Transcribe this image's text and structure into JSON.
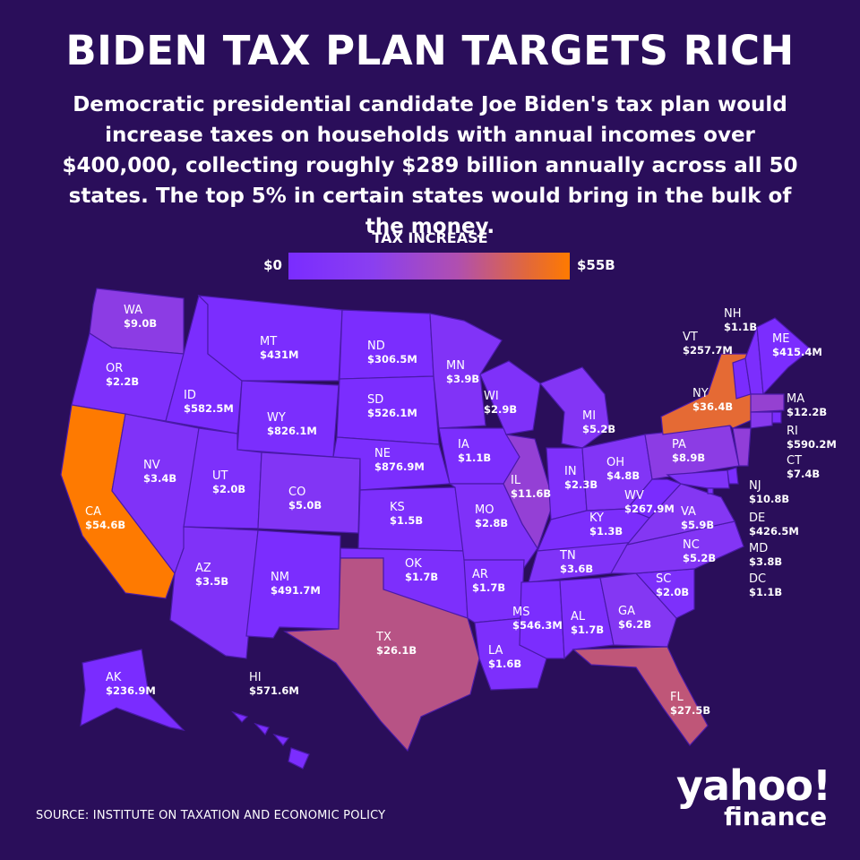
{
  "title": "BIDEN TAX PLAN TARGETS RICH",
  "subtitle": "Democratic presidential candidate Joe Biden's tax plan would increase taxes on households with annual incomes over $400,000, collecting roughly $289 billion annually across all 50 states. The top 5% in certain states would bring in the bulk of the money.",
  "legend": {
    "title": "TAX INCREASE",
    "min_label": "$0",
    "max_label": "$55B",
    "min_color": "#7a2cff",
    "max_color": "#ff7a00"
  },
  "states": [
    {
      "code": "WA",
      "value": "$9.0B"
    },
    {
      "code": "OR",
      "value": "$2.2B"
    },
    {
      "code": "CA",
      "value": "$54.6B"
    },
    {
      "code": "NV",
      "value": "$3.4B"
    },
    {
      "code": "ID",
      "value": "$582.5M"
    },
    {
      "code": "MT",
      "value": "$431M"
    },
    {
      "code": "WY",
      "value": "$826.1M"
    },
    {
      "code": "UT",
      "value": "$2.0B"
    },
    {
      "code": "CO",
      "value": "$5.0B"
    },
    {
      "code": "AZ",
      "value": "$3.5B"
    },
    {
      "code": "NM",
      "value": "$491.7M"
    },
    {
      "code": "ND",
      "value": "$306.5M"
    },
    {
      "code": "SD",
      "value": "$526.1M"
    },
    {
      "code": "NE",
      "value": "$876.9M"
    },
    {
      "code": "KS",
      "value": "$1.5B"
    },
    {
      "code": "OK",
      "value": "$1.7B"
    },
    {
      "code": "TX",
      "value": "$26.1B"
    },
    {
      "code": "MN",
      "value": "$3.9B"
    },
    {
      "code": "IA",
      "value": "$1.1B"
    },
    {
      "code": "MO",
      "value": "$2.8B"
    },
    {
      "code": "AR",
      "value": "$1.7B"
    },
    {
      "code": "LA",
      "value": "$1.6B"
    },
    {
      "code": "WI",
      "value": "$2.9B"
    },
    {
      "code": "IL",
      "value": "$11.6B"
    },
    {
      "code": "MI",
      "value": "$5.2B"
    },
    {
      "code": "IN",
      "value": "$2.3B"
    },
    {
      "code": "OH",
      "value": "$4.8B"
    },
    {
      "code": "KY",
      "value": "$1.3B"
    },
    {
      "code": "TN",
      "value": "$3.6B"
    },
    {
      "code": "MS",
      "value": "$546.3M"
    },
    {
      "code": "AL",
      "value": "$1.7B"
    },
    {
      "code": "GA",
      "value": "$6.2B"
    },
    {
      "code": "FL",
      "value": "$27.5B"
    },
    {
      "code": "SC",
      "value": "$2.0B"
    },
    {
      "code": "NC",
      "value": "$5.2B"
    },
    {
      "code": "VA",
      "value": "$5.9B"
    },
    {
      "code": "WV",
      "value": "$267.9M"
    },
    {
      "code": "PA",
      "value": "$8.9B"
    },
    {
      "code": "NY",
      "value": "$36.4B"
    },
    {
      "code": "VT",
      "value": "$257.7M"
    },
    {
      "code": "NH",
      "value": "$1.1B"
    },
    {
      "code": "ME",
      "value": "$415.4M"
    },
    {
      "code": "MA",
      "value": "$12.2B"
    },
    {
      "code": "RI",
      "value": "$590.2M"
    },
    {
      "code": "CT",
      "value": "$7.4B"
    },
    {
      "code": "NJ",
      "value": "$10.8B"
    },
    {
      "code": "DE",
      "value": "$426.5M"
    },
    {
      "code": "MD",
      "value": "$3.8B"
    },
    {
      "code": "DC",
      "value": "$1.1B"
    },
    {
      "code": "AK",
      "value": "$236.9M"
    },
    {
      "code": "HI",
      "value": "$571.6M"
    }
  ],
  "source": "SOURCE:  INSTITUTE ON TAXATION AND ECONOMIC POLICY",
  "logo": {
    "line1": "yahoo!",
    "line2": "finance"
  }
}
